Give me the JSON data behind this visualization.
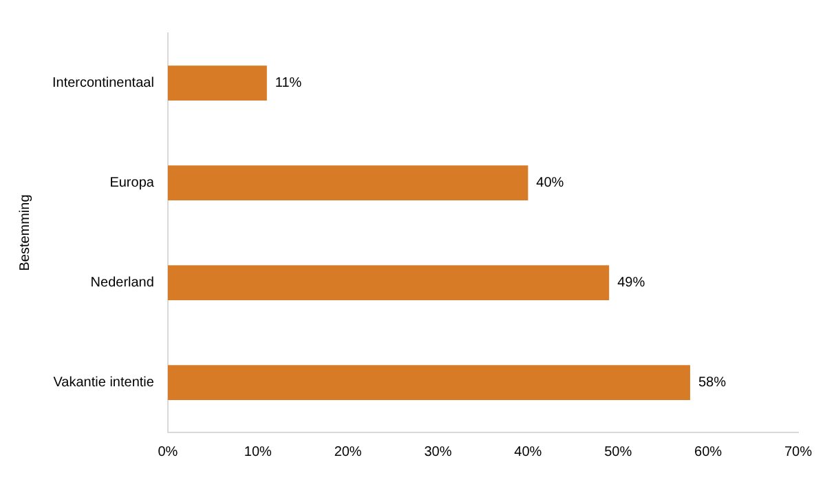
{
  "chart_data": {
    "type": "bar",
    "orientation": "horizontal",
    "ylabel": "Bestemming",
    "categories": [
      "Intercontinentaal",
      "Europa",
      "Nederland",
      "Vakantie intentie"
    ],
    "values": [
      11,
      40,
      49,
      58
    ],
    "value_labels": [
      "11%",
      "40%",
      "49%",
      "58%"
    ],
    "color": "#d87b26",
    "xlim": [
      0,
      70
    ],
    "xticks": [
      {
        "value": 0,
        "label": "0%"
      },
      {
        "value": 10,
        "label": "10%"
      },
      {
        "value": 20,
        "label": "20%"
      },
      {
        "value": 30,
        "label": "30%"
      },
      {
        "value": 40,
        "label": "40%"
      },
      {
        "value": 50,
        "label": "50%"
      },
      {
        "value": 60,
        "label": "60%"
      },
      {
        "value": 70,
        "label": "70%"
      }
    ],
    "grid": false,
    "legend": false
  }
}
